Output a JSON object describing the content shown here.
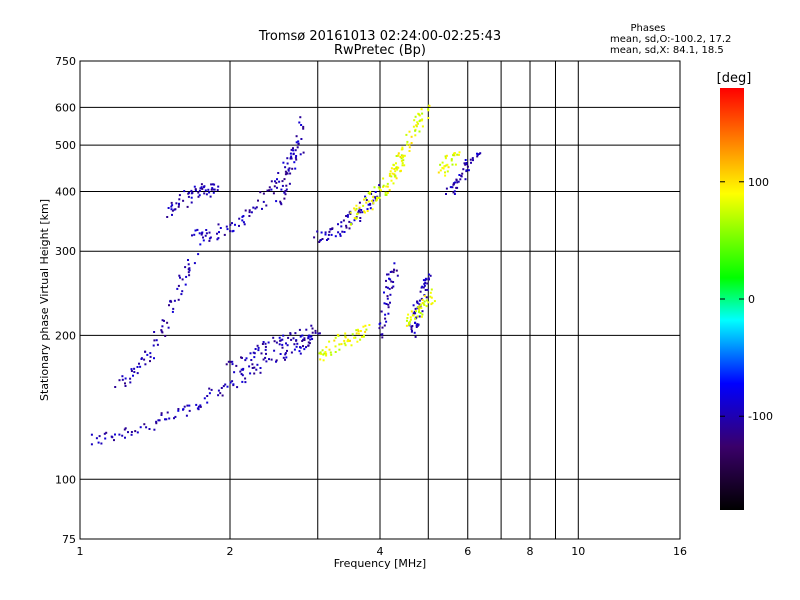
{
  "chart_data": {
    "type": "scatter",
    "title": "Tromsø 20161013 02:24:00-02:25:43",
    "subtitle": "RwPretec (Bp)",
    "xlabel": "Frequency [MHz]",
    "ylabel": "Stationary phase Virtual Height [km]",
    "x_scale": "log",
    "y_scale": "log",
    "xlim": [
      1,
      16
    ],
    "ylim": [
      75,
      750
    ],
    "x_ticks": [
      1,
      2,
      4,
      6,
      8,
      10,
      16
    ],
    "x_tick_labels": [
      "1",
      "2",
      "4",
      "6",
      "8",
      "10",
      "16"
    ],
    "x_minor_gridlines": [
      3,
      5,
      7,
      9
    ],
    "y_ticks": [
      75,
      100,
      200,
      300,
      400,
      500,
      600,
      750
    ],
    "y_tick_labels": [
      "75",
      "100",
      "200",
      "300",
      "400",
      "500",
      "600",
      "750"
    ],
    "grid": true,
    "legend": {
      "title": "Phases",
      "lines": [
        "mean, sd,O:-100.2, 17.2",
        "mean, sd,X:  84.1, 18.5"
      ],
      "placement": "top-right"
    },
    "colorbar": {
      "label": "[deg]",
      "min": -180,
      "max": 180,
      "tick_values": [
        100,
        0,
        -100
      ],
      "tick_labels": [
        "100",
        "0",
        "-100"
      ],
      "colormap": [
        "#000000",
        "#3a006a",
        "#0000ff",
        "#00ffff",
        "#00ff00",
        "#ffff00",
        "#ff0000"
      ]
    },
    "series": [
      {
        "mode": "O",
        "phase_deg": -100.2,
        "phase_sd": 17.2,
        "segments": [
          {
            "f": [
              1.05,
              1.2,
              1.4,
              1.6,
              1.8,
              2.0,
              2.2,
              2.5,
              2.8,
              3.0
            ],
            "h": [
              120,
              125,
              130,
              138,
              148,
              160,
              168,
              180,
              190,
              200
            ]
          },
          {
            "f": [
              1.2,
              1.3,
              1.4,
              1.5,
              1.6,
              1.7
            ],
            "h": [
              160,
              170,
              185,
              220,
              260,
              290
            ]
          },
          {
            "f": [
              1.7,
              1.8,
              2.0,
              2.2,
              2.4,
              2.6,
              2.8
            ],
            "h": [
              320,
              325,
              335,
              360,
              400,
              450,
              500
            ]
          },
          {
            "f": [
              1.5,
              1.6,
              1.7,
              1.8,
              1.9
            ],
            "h": [
              360,
              380,
              400,
              405,
              400
            ]
          },
          {
            "f": [
              2.5,
              2.6,
              2.7,
              2.8
            ],
            "h": [
              380,
              420,
              480,
              560
            ]
          },
          {
            "f": [
              3.0,
              3.2,
              3.4,
              3.6,
              3.8,
              4.0
            ],
            "h": [
              320,
              330,
              340,
              360,
              380,
              400
            ]
          },
          {
            "f": [
              2.0,
              2.2,
              2.4,
              2.6,
              2.8,
              3.0
            ],
            "h": [
              170,
              180,
              190,
              195,
              200,
              205
            ]
          },
          {
            "f": [
              4.0,
              4.1,
              4.2,
              4.3
            ],
            "h": [
              200,
              230,
              260,
              280
            ]
          },
          {
            "f": [
              4.6,
              4.7,
              4.8,
              4.9,
              5.0
            ],
            "h": [
              200,
              215,
              230,
              250,
              270
            ]
          },
          {
            "f": [
              5.5,
              5.7,
              6.0,
              6.3
            ],
            "h": [
              400,
              420,
              450,
              480
            ]
          }
        ]
      },
      {
        "mode": "X",
        "phase_deg": 84.1,
        "phase_sd": 18.5,
        "segments": [
          {
            "f": [
              3.0,
              3.2,
              3.4,
              3.6,
              3.8
            ],
            "h": [
              180,
              190,
              195,
              200,
              205
            ]
          },
          {
            "f": [
              3.5,
              3.7,
              3.9,
              4.1,
              4.3,
              4.5
            ],
            "h": [
              350,
              370,
              390,
              410,
              440,
              480
            ]
          },
          {
            "f": [
              4.2,
              4.4,
              4.6,
              4.8,
              5.0
            ],
            "h": [
              420,
              470,
              520,
              560,
              600
            ]
          },
          {
            "f": [
              4.5,
              4.7,
              4.9,
              5.1
            ],
            "h": [
              210,
              220,
              230,
              245
            ]
          },
          {
            "f": [
              5.3,
              5.5,
              5.7
            ],
            "h": [
              440,
              460,
              470
            ]
          }
        ]
      }
    ]
  }
}
